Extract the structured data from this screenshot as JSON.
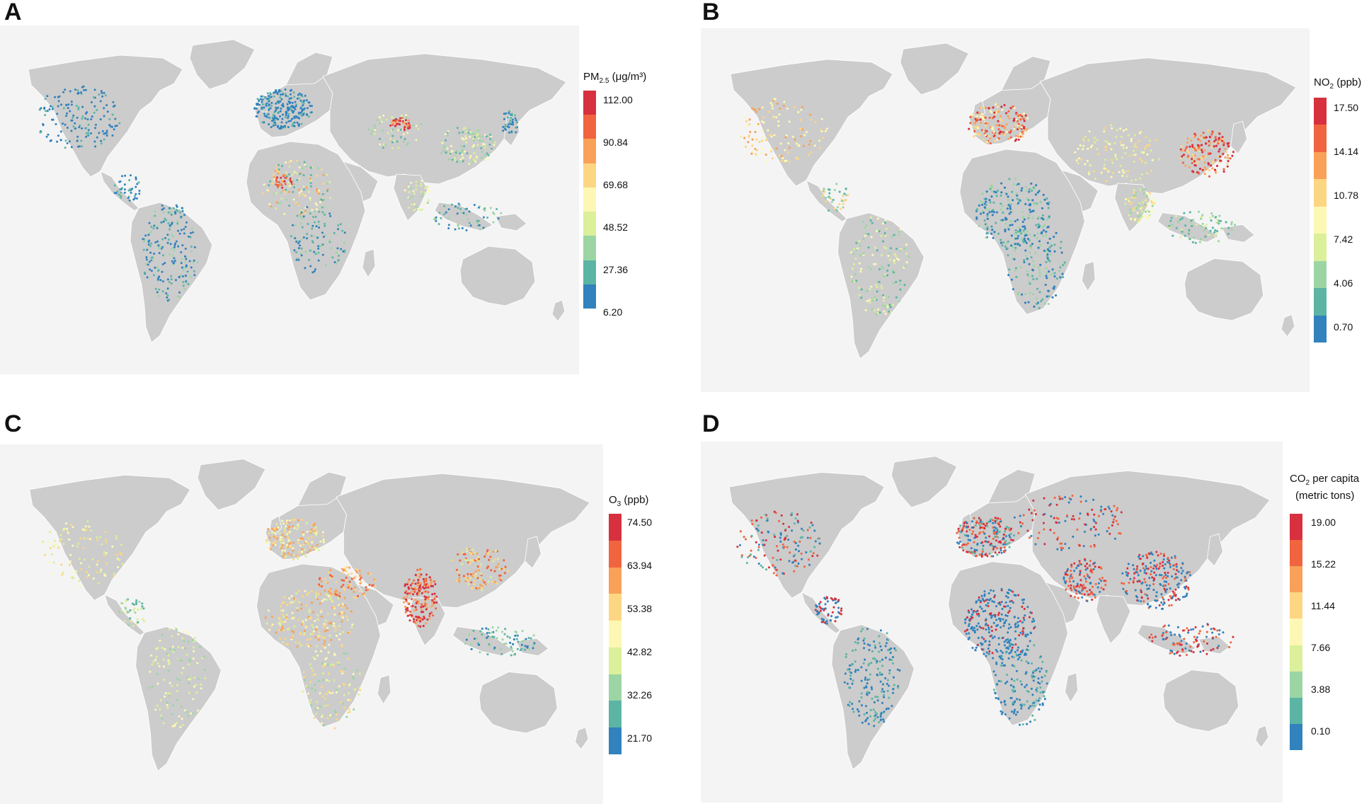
{
  "panels": [
    {
      "id": "A",
      "letter": "A",
      "legend": {
        "title_main": "PM",
        "title_sub": "2.5",
        "title_rest": " (μg/m³)",
        "ticks": [
          "112.00",
          "90.84",
          "69.68",
          "48.52",
          "27.36",
          "6.20"
        ]
      }
    },
    {
      "id": "B",
      "letter": "B",
      "legend": {
        "title_main": "NO",
        "title_sub": "2",
        "title_rest": " (ppb)",
        "ticks": [
          "17.50",
          "14.14",
          "10.78",
          "7.42",
          "4.06",
          "0.70"
        ]
      }
    },
    {
      "id": "C",
      "letter": "C",
      "legend": {
        "title_main": "O",
        "title_sub": "3",
        "title_rest": " (ppb)",
        "ticks": [
          "74.50",
          "63.94",
          "53.38",
          "42.82",
          "32.26",
          "21.70"
        ]
      }
    },
    {
      "id": "D",
      "letter": "D",
      "legend": {
        "title_main": "CO",
        "title_sub": "2",
        "title_rest": " per capita",
        "title_line2": "(metric tons)",
        "ticks": [
          "19.00",
          "15.22",
          "11.44",
          "7.66",
          "3.88",
          "0.10"
        ]
      }
    }
  ],
  "colorscale": [
    "#d7303f",
    "#f0643f",
    "#f9a159",
    "#fdd684",
    "#fcf8b4",
    "#dcef9a",
    "#9cd5a4",
    "#5cb5a4",
    "#3182bd"
  ],
  "colors": {
    "land": "#cccccc",
    "background": "#f4f4f4",
    "borders": "#ffffff"
  }
}
